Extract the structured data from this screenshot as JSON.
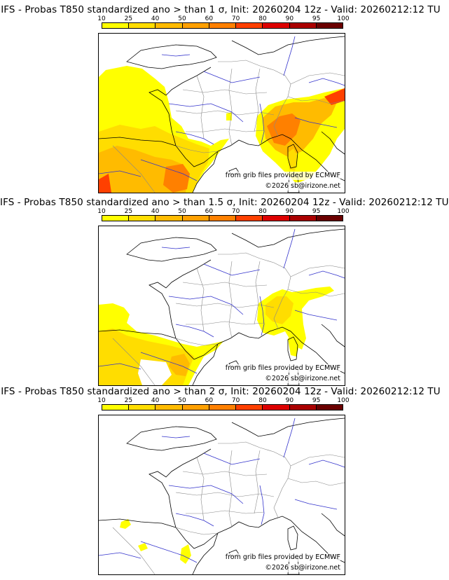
{
  "colorbar": {
    "labels": [
      "10",
      "25",
      "40",
      "50",
      "60",
      "70",
      "80",
      "90",
      "95",
      "100"
    ],
    "colors": [
      "#ffff00",
      "#ffdd00",
      "#ffbb00",
      "#ffa000",
      "#ff8000",
      "#ff4000",
      "#dd0000",
      "#aa0000",
      "#6b0000"
    ]
  },
  "panels": [
    {
      "title": "IFS - Probas T850  standardized ano > than 1 σ, Init: 20260204 12z - Valid: 20260212:12 TU",
      "source": "from grib files provided by ECMWF",
      "copyright": "©2026 sb@irizone.net"
    },
    {
      "title": "IFS - Probas T850  standardized ano > than 1.5 σ, Init: 20260204 12z - Valid: 20260212:12 TU",
      "source": "from grib files provided by ECMWF",
      "copyright": "©2026 sb@irizone.net"
    },
    {
      "title": "IFS - Probas T850  standardized ano > than 2 σ, Init: 20260204 12z - Valid: 20260212:12 TU",
      "source": "from grib files provided by ECMWF",
      "copyright": "©2026 sb@irizone.net"
    }
  ]
}
